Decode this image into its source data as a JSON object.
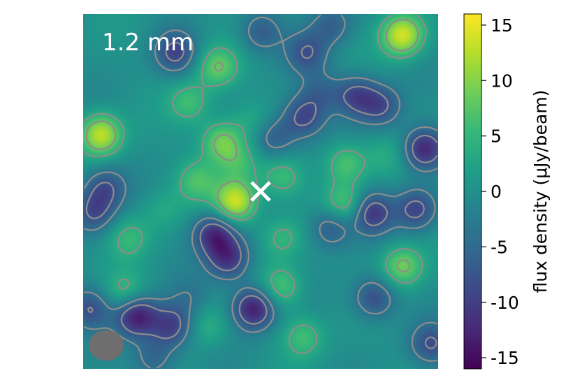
{
  "chart_data": {
    "type": "heatmap",
    "title": "",
    "panel_label": "1.2 mm",
    "colorbar": {
      "label": "flux density (μJy/beam)",
      "range": [
        -16,
        16
      ],
      "ticks": [
        15,
        10,
        5,
        0,
        -5,
        -10,
        -15
      ],
      "tick_labels": [
        "15",
        "10",
        "5",
        "0",
        "-5",
        "-10",
        "-15"
      ],
      "colormap": "viridis"
    },
    "contours": {
      "color": "#8c8c8c",
      "positive_style": "solid",
      "negative_style": "dashed"
    },
    "marker": {
      "symbol": "×",
      "color": "#ffffff"
    },
    "beam": {
      "color": "#6e6e6e"
    },
    "sources": [
      {
        "x": 0.43,
        "y": 0.53,
        "peak": 14
      },
      {
        "x": 0.39,
        "y": 0.36,
        "peak": 9
      },
      {
        "x": 0.05,
        "y": 0.34,
        "peak": 13
      },
      {
        "x": 0.9,
        "y": 0.06,
        "peak": 14
      },
      {
        "x": 0.9,
        "y": 0.71,
        "peak": 9
      },
      {
        "x": 0.74,
        "y": 0.54,
        "peak": 8
      },
      {
        "x": 0.74,
        "y": 0.42,
        "peak": 7
      },
      {
        "x": 0.38,
        "y": 0.15,
        "peak": 8
      },
      {
        "x": 0.3,
        "y": 0.25,
        "peak": 6
      },
      {
        "x": 0.56,
        "y": 0.77,
        "peak": 7
      },
      {
        "x": 0.62,
        "y": 0.91,
        "peak": 6
      },
      {
        "x": 0.12,
        "y": 0.79,
        "peak": 6
      },
      {
        "x": 0.13,
        "y": 0.63,
        "peak": 5
      },
      {
        "x": 0.32,
        "y": 0.47,
        "peak": 6
      },
      {
        "x": 0.44,
        "y": 0.42,
        "peak": 5
      },
      {
        "x": 0.56,
        "y": 0.46,
        "peak": 6
      },
      {
        "x": 0.56,
        "y": 0.63,
        "peak": 5
      },
      {
        "x": 0.81,
        "y": 0.56,
        "peak": -11
      },
      {
        "x": 0.48,
        "y": 0.83,
        "peak": -14
      },
      {
        "x": 0.15,
        "y": 0.85,
        "peak": -14
      },
      {
        "x": 0.37,
        "y": 0.62,
        "peak": -12
      },
      {
        "x": 0.41,
        "y": 0.69,
        "peak": -11
      },
      {
        "x": 0.25,
        "y": 0.88,
        "peak": -10
      },
      {
        "x": 0.26,
        "y": 0.11,
        "peak": -9
      },
      {
        "x": 0.77,
        "y": 0.23,
        "peak": -9
      },
      {
        "x": 0.84,
        "y": 0.26,
        "peak": -8
      },
      {
        "x": 0.94,
        "y": 0.55,
        "peak": -9
      },
      {
        "x": 0.62,
        "y": 0.29,
        "peak": -9
      },
      {
        "x": 0.82,
        "y": 0.8,
        "peak": -9
      },
      {
        "x": 0.96,
        "y": 0.38,
        "peak": -13
      },
      {
        "x": 0.7,
        "y": 0.6,
        "peak": -8
      },
      {
        "x": 0.02,
        "y": 0.83,
        "peak": -8
      },
      {
        "x": 0.06,
        "y": 0.49,
        "peak": -8
      },
      {
        "x": 0.63,
        "y": 0.11,
        "peak": -7
      },
      {
        "x": 0.54,
        "y": 0.35,
        "peak": -7
      },
      {
        "x": 0.03,
        "y": 0.56,
        "peak": -8
      },
      {
        "x": 0.98,
        "y": 0.93,
        "peak": -8
      },
      {
        "x": 0.5,
        "y": 0.05,
        "peak": -7
      },
      {
        "x": 0.7,
        "y": 0.03,
        "peak": -6
      },
      {
        "x": 0.2,
        "y": 0.97,
        "peak": -6
      },
      {
        "x": 0.67,
        "y": 0.22,
        "peak": -5
      },
      {
        "x": 0.35,
        "y": 0.88,
        "peak": 4
      },
      {
        "x": 0.22,
        "y": 0.55,
        "peak": 3
      },
      {
        "x": 0.85,
        "y": 0.4,
        "peak": 3
      },
      {
        "x": 0.3,
        "y": 0.8,
        "peak": -3
      },
      {
        "x": 0.47,
        "y": 0.3,
        "peak": 3
      }
    ]
  }
}
